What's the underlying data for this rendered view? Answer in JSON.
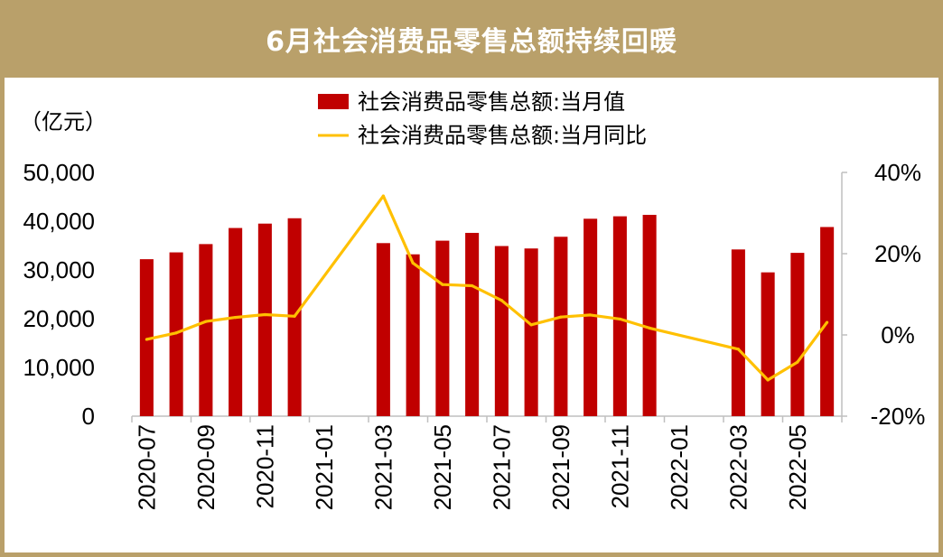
{
  "title": "6月社会消费品零售总额持续回暖",
  "colors": {
    "frame": "#b9a06a",
    "bar": "#c00000",
    "line": "#ffc000",
    "axis": "#bfbfbf"
  },
  "chart_data": {
    "type": "bar+line",
    "y_unit_label": "（亿元）",
    "legend_position": "top",
    "grid": false,
    "left_axis": {
      "ylim": [
        0,
        50000
      ],
      "ticks": [
        "50,000",
        "40,000",
        "30,000",
        "20,000",
        "10,000",
        "0"
      ]
    },
    "right_axis": {
      "ylim": [
        -20,
        40
      ],
      "ticks": [
        "40%",
        "20%",
        "0%",
        "-20%"
      ]
    },
    "months": [
      "2020-07",
      "2020-08",
      "2020-09",
      "2020-10",
      "2020-11",
      "2020-12",
      "2021-01",
      "2021-02",
      "2021-03",
      "2021-04",
      "2021-05",
      "2021-06",
      "2021-07",
      "2021-08",
      "2021-09",
      "2021-10",
      "2021-11",
      "2021-12",
      "2022-01",
      "2022-02",
      "2022-03",
      "2022-04",
      "2022-05",
      "2022-06"
    ],
    "x_tick_labels": [
      "2020-07",
      "2020-09",
      "2020-11",
      "2021-01",
      "2021-03",
      "2021-05",
      "2021-07",
      "2021-09",
      "2021-11",
      "2022-01",
      "2022-03",
      "2022-05"
    ],
    "series": [
      {
        "name": "社会消费品零售总额:当月值",
        "type": "bar",
        "axis": "left",
        "values": [
          32200,
          33600,
          35300,
          38600,
          39500,
          40600,
          null,
          null,
          35500,
          33200,
          36000,
          37600,
          34900,
          34400,
          36800,
          40500,
          41000,
          41300,
          null,
          null,
          34200,
          29500,
          33500,
          38800
        ]
      },
      {
        "name": "社会消费品零售总额:当月同比",
        "type": "line",
        "axis": "right",
        "values": [
          -1.1,
          0.5,
          3.3,
          4.3,
          5.0,
          4.6,
          null,
          null,
          34.2,
          17.7,
          12.4,
          12.1,
          8.5,
          2.5,
          4.4,
          4.9,
          3.9,
          1.7,
          null,
          null,
          -3.5,
          -11.1,
          -6.7,
          3.1
        ]
      }
    ]
  }
}
